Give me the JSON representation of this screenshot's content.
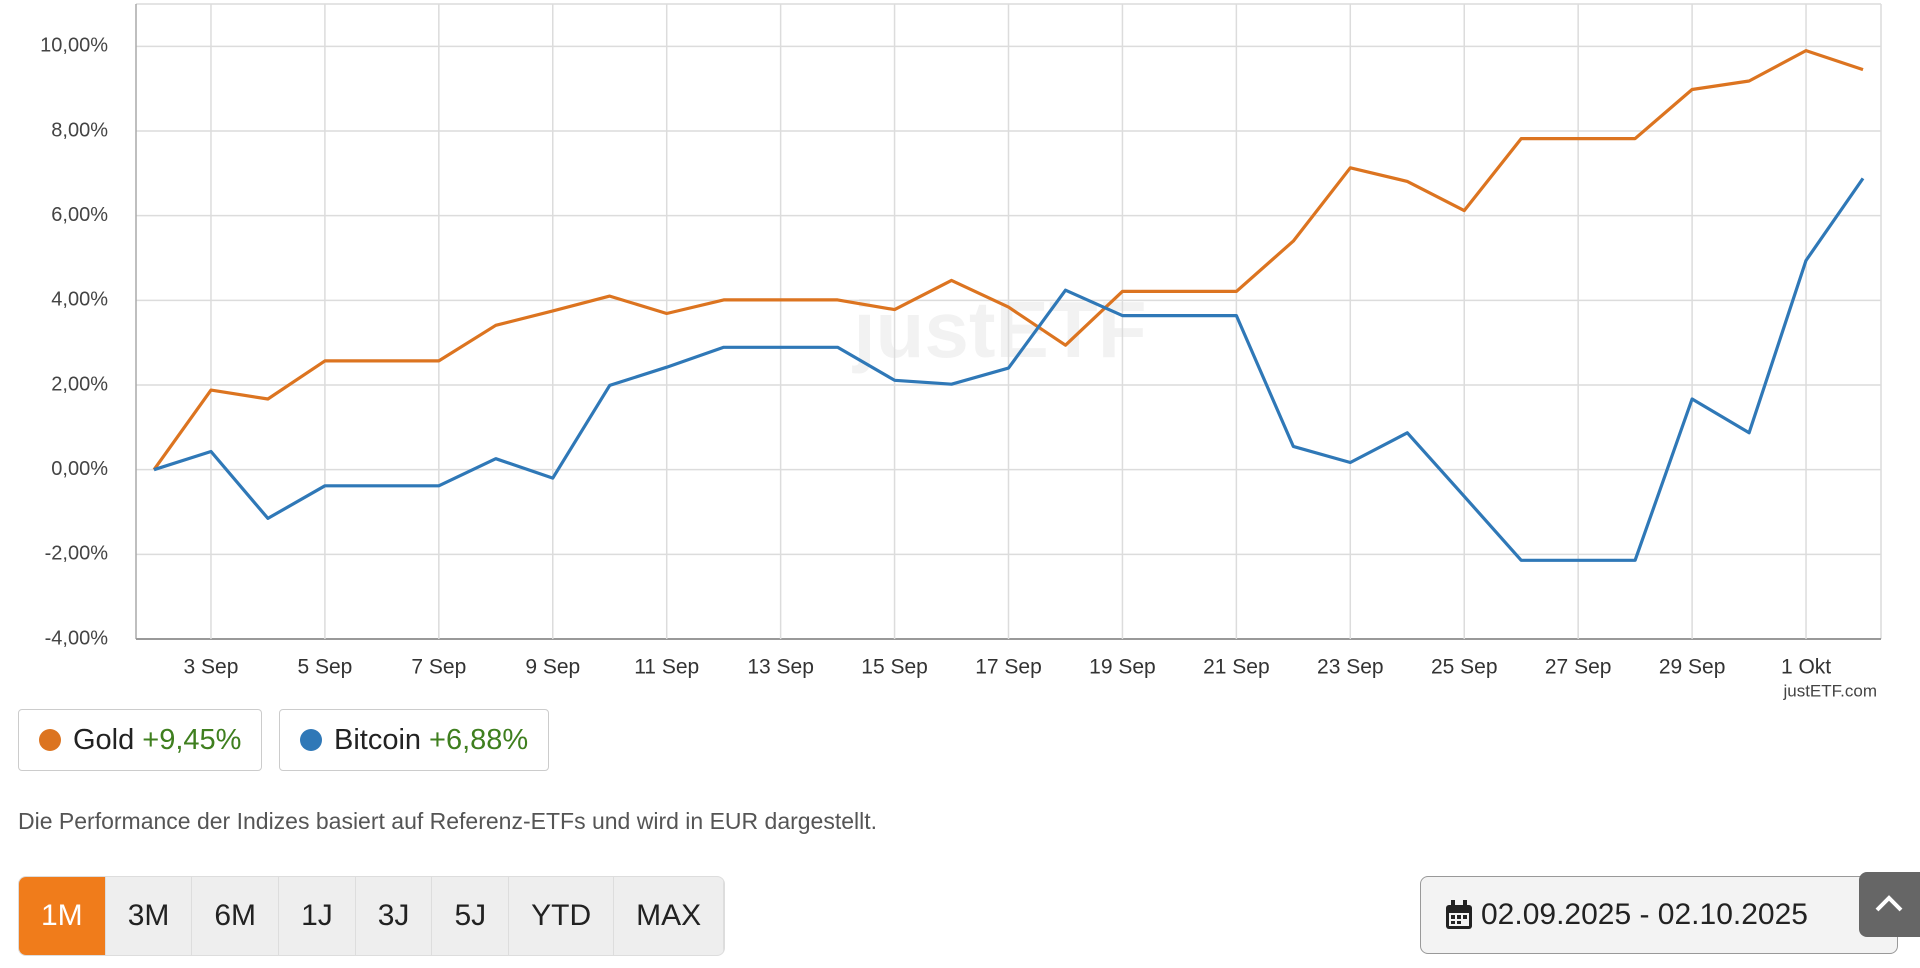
{
  "chart_data": {
    "type": "line",
    "categories": [
      null,
      "3 Sep",
      null,
      "5 Sep",
      null,
      "7 Sep",
      null,
      "9 Sep",
      null,
      "11 Sep",
      null,
      "13 Sep",
      null,
      "15 Sep",
      null,
      "17 Sep",
      null,
      "19 Sep",
      null,
      "21 Sep",
      null,
      "23 Sep",
      null,
      "25 Sep",
      null,
      "27 Sep",
      null,
      "29 Sep",
      null,
      "1 Okt",
      null
    ],
    "series": [
      {
        "name": "Gold",
        "color": "#dc7420",
        "change_label": "+9,45%",
        "values": [
          0,
          1.88,
          1.67,
          2.57,
          2.57,
          2.57,
          3.41,
          3.75,
          4.1,
          3.69,
          4.01,
          4.01,
          4.01,
          3.78,
          4.47,
          3.84,
          2.94,
          4.21,
          4.21,
          4.21,
          5.4,
          7.13,
          6.81,
          6.12,
          7.82,
          7.82,
          7.82,
          8.98,
          9.18,
          9.9,
          9.45
        ]
      },
      {
        "name": "Bitcoin",
        "color": "#2f78b7",
        "change_label": "+6,88%",
        "values": [
          0,
          0.43,
          -1.15,
          -0.38,
          -0.38,
          -0.38,
          0.26,
          -0.2,
          1.99,
          2.42,
          2.89,
          2.89,
          2.89,
          2.11,
          2.02,
          2.4,
          4.24,
          3.64,
          3.64,
          3.64,
          0.55,
          0.17,
          0.87,
          -0.63,
          -2.14,
          -2.14,
          -2.14,
          1.67,
          0.87,
          4.94,
          6.88
        ]
      }
    ],
    "ylim": [
      -4,
      11
    ],
    "yticks": [
      {
        "value": -4,
        "label": "-4,00%"
      },
      {
        "value": -2,
        "label": "-2,00%"
      },
      {
        "value": 0,
        "label": "0,00%"
      },
      {
        "value": 2,
        "label": "2,00%"
      },
      {
        "value": 4,
        "label": "4,00%"
      },
      {
        "value": 6,
        "label": "6,00%"
      },
      {
        "value": 8,
        "label": "8,00%"
      },
      {
        "value": 10,
        "label": "10,00%"
      }
    ],
    "grid": true,
    "watermark": "justETF",
    "credit": "justETF.com"
  },
  "note": "Die Performance der Indizes basiert auf Referenz-ETFs und wird in EUR dargestellt.",
  "range_buttons": {
    "items": [
      "1M",
      "3M",
      "6M",
      "1J",
      "3J",
      "5J",
      "YTD",
      "MAX"
    ],
    "active_index": 0
  },
  "date_range": "02.09.2025 - 02.10.2025"
}
